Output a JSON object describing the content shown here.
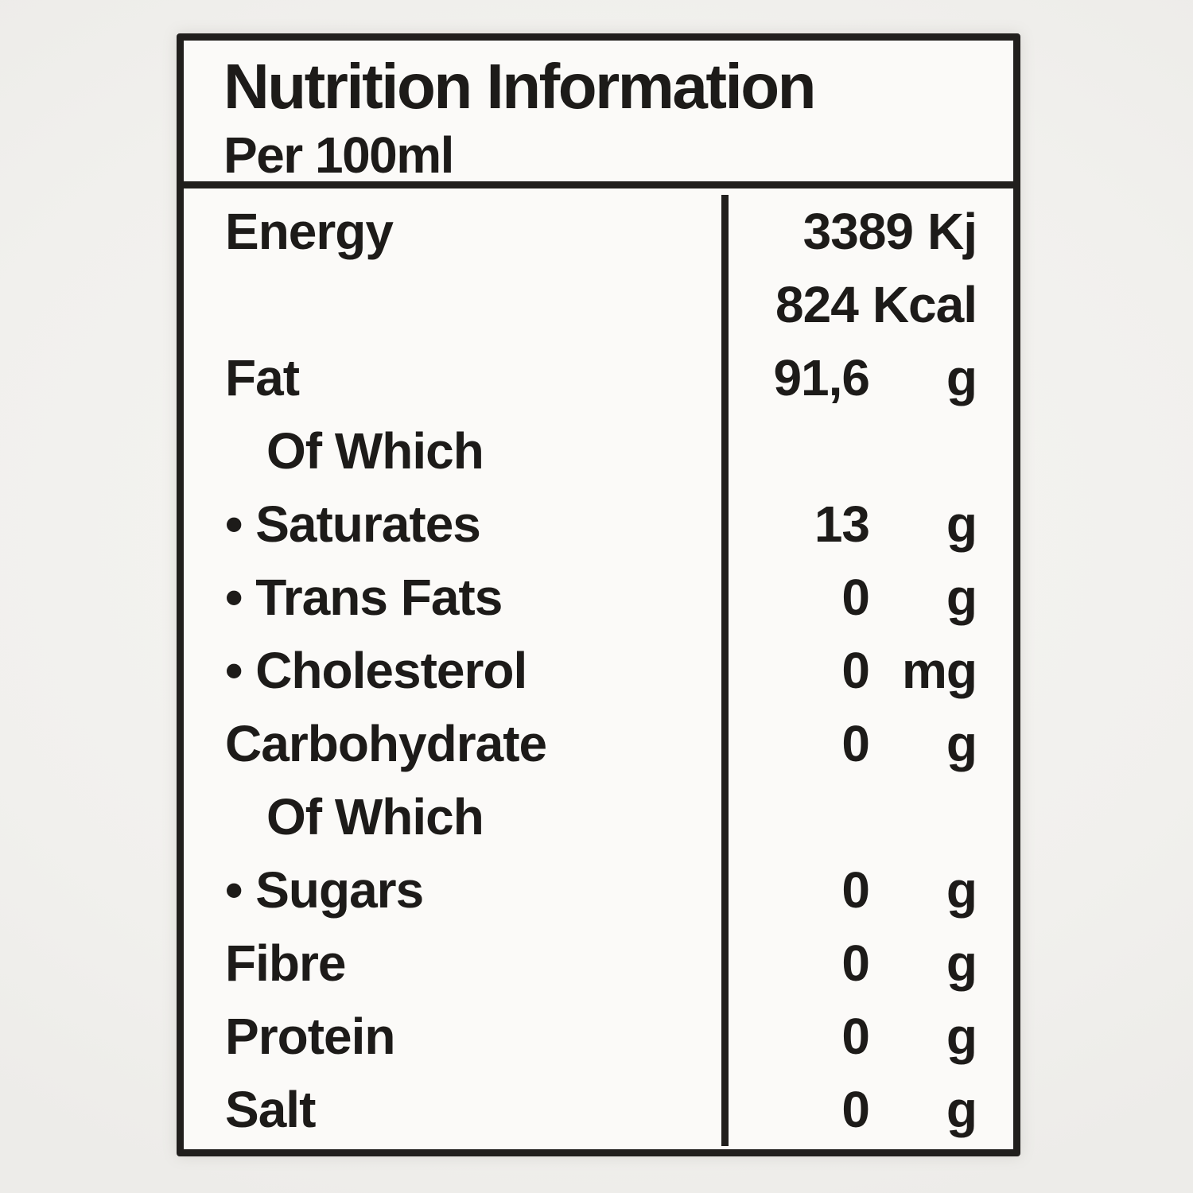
{
  "label": {
    "title": "Nutrition Information",
    "serving": "Per 100ml",
    "ink_color": "#211f1d",
    "paper_color": "#fbfaf8",
    "rows": [
      {
        "label": "Energy",
        "amount": "3389",
        "unit": "Kj"
      },
      {
        "label": "",
        "amount": "824",
        "unit": "Kcal"
      },
      {
        "label": "Fat",
        "amount": "91,6",
        "unit": "g"
      },
      {
        "label": "Of Which",
        "amount": "",
        "unit": ""
      },
      {
        "label": "• Saturates",
        "amount": "13",
        "unit": "g"
      },
      {
        "label": "• Trans Fats",
        "amount": "0",
        "unit": "g"
      },
      {
        "label": "• Cholesterol",
        "amount": "0",
        "unit": "mg"
      },
      {
        "label": "Carbohydrate",
        "amount": "0",
        "unit": "g"
      },
      {
        "label": "Of Which",
        "amount": "",
        "unit": ""
      },
      {
        "label": "• Sugars",
        "amount": "0",
        "unit": "g"
      },
      {
        "label": "Fibre",
        "amount": "0",
        "unit": "g"
      },
      {
        "label": "Protein",
        "amount": "0",
        "unit": "g"
      },
      {
        "label": "Salt",
        "amount": "0",
        "unit": "g"
      }
    ]
  }
}
